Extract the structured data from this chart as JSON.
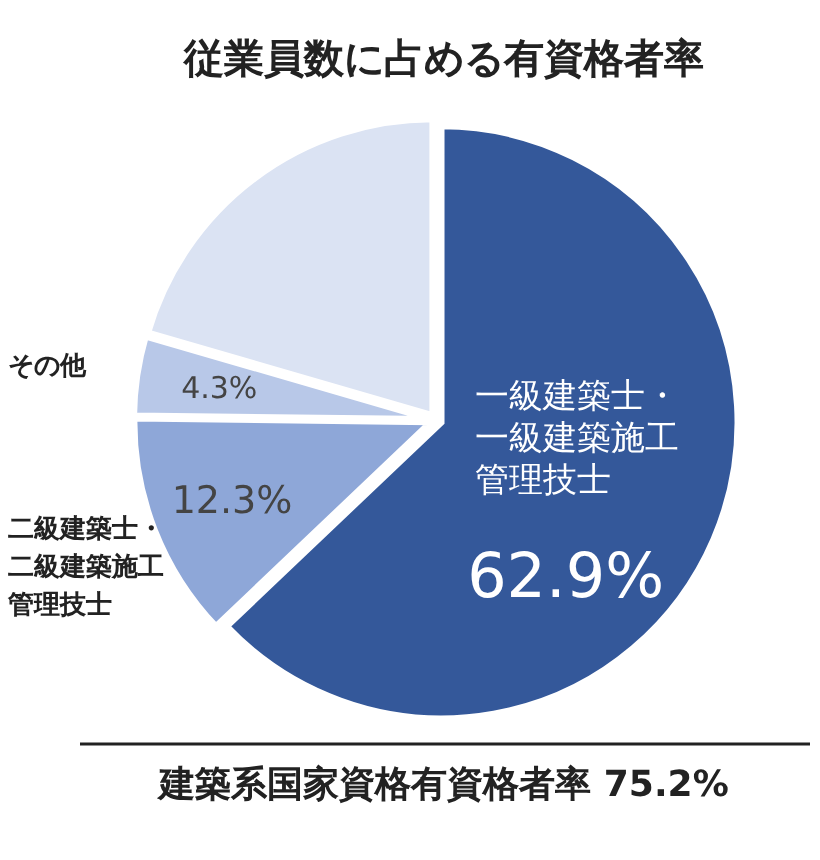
{
  "chart_data": {
    "type": "pie",
    "title": "従業員数に占める有資格者率",
    "categories": [
      "一級建築士・一級建築施工管理技士",
      "二級建築士・二級建築施工管理技士",
      "その他",
      null
    ],
    "values": [
      62.9,
      12.3,
      4.3,
      20.5
    ],
    "value_labels": [
      "62.9%",
      "12.3%",
      "4.3%",
      null
    ],
    "colors": [
      "#34589a",
      "#8ea7d8",
      "#b8c8e8",
      "#dbe3f3"
    ],
    "annotations": [
      "建築系国家資格有資格者率 75.2%"
    ]
  }
}
